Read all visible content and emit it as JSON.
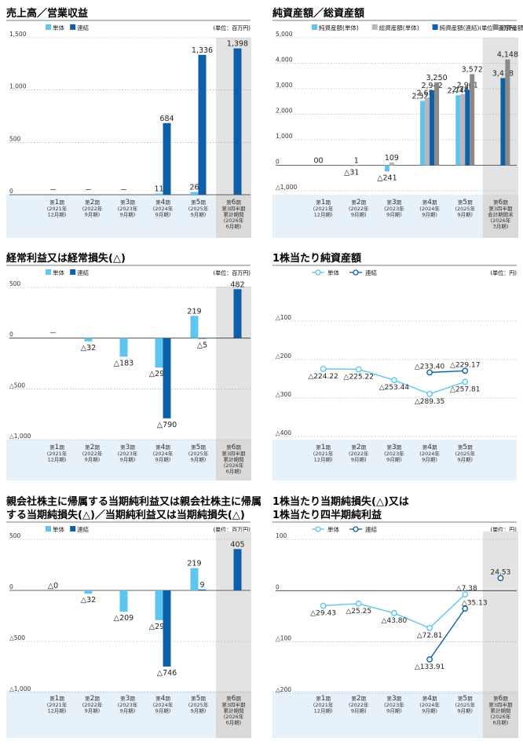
{
  "charts": [
    {
      "id": "c1",
      "title": [
        "売上高／営業収益"
      ],
      "unit": "(単位：百万円)",
      "legend": [
        {
          "label": "単体",
          "color": "#5ec6ee",
          "type": "bar"
        },
        {
          "label": "連結",
          "color": "#0d5fa8",
          "type": "bar"
        }
      ],
      "ylim": [
        0,
        1500
      ],
      "yticks": [
        {
          "v": 0,
          "t": "0"
        },
        {
          "v": 500,
          "t": "500"
        },
        {
          "v": 1000,
          "t": "1,000"
        },
        {
          "v": 1500,
          "t": "1,500"
        }
      ],
      "categories": [
        {
          "n": "1",
          "l": [
            "(2021年",
            "12月期)"
          ]
        },
        {
          "n": "2",
          "l": [
            "(2022年",
            "9月期)"
          ]
        },
        {
          "n": "3",
          "l": [
            "(2023年",
            "9月期)"
          ]
        },
        {
          "n": "4",
          "l": [
            "(2024年",
            "9月期)"
          ]
        },
        {
          "n": "5",
          "l": [
            "(2025年",
            "9月期)"
          ]
        },
        {
          "n": "6",
          "l": [
            "第3四半期",
            "累計期間",
            "(2026年",
            "6月期)"
          ]
        }
      ],
      "series": [
        {
          "name": "単体",
          "color": "#5ec6ee",
          "values": [
            null,
            null,
            null,
            11,
            26,
            null
          ],
          "labels": [
            "－",
            "－",
            "－",
            "11",
            "26",
            ""
          ]
        },
        {
          "name": "連結",
          "color": "#0d5fa8",
          "values": [
            null,
            null,
            null,
            684,
            1336,
            1398
          ],
          "labels": [
            "",
            "",
            "",
            "684",
            "1,336",
            "1,398"
          ]
        }
      ]
    },
    {
      "id": "c2",
      "title": [
        "純資産額／総資産額"
      ],
      "unit": "(単位：百万円)",
      "legend": [
        {
          "label": "純資産額(単体)",
          "color": "#5ec6ee",
          "type": "bar"
        },
        {
          "label": "総資産額(単体)",
          "color": "#b7b7b7",
          "type": "bar"
        },
        {
          "label": "純資産額(連結)",
          "color": "#0d5fa8",
          "type": "bar"
        },
        {
          "label": "総資産額(連結)",
          "color": "#8a8a8a",
          "type": "bar"
        }
      ],
      "ylim": [
        -1000,
        5000
      ],
      "yticks": [
        {
          "v": -1000,
          "t": "△1,000"
        },
        {
          "v": 0,
          "t": "0"
        },
        {
          "v": 1000,
          "t": "1,000"
        },
        {
          "v": 2000,
          "t": "2,000"
        },
        {
          "v": 3000,
          "t": "3,000"
        },
        {
          "v": 4000,
          "t": "4,000"
        },
        {
          "v": 5000,
          "t": "5,000"
        }
      ],
      "categories": [
        {
          "n": "1",
          "l": [
            "(2021年",
            "12月期)"
          ]
        },
        {
          "n": "2",
          "l": [
            "(2022年",
            "9月期)"
          ]
        },
        {
          "n": "3",
          "l": [
            "(2023年",
            "9月期)"
          ]
        },
        {
          "n": "4",
          "l": [
            "(2024年",
            "9月期)"
          ]
        },
        {
          "n": "5",
          "l": [
            "(2025年",
            "9月期)"
          ]
        },
        {
          "n": "6",
          "l": [
            "第3四半期",
            "会計期間末",
            "(2026年",
            "3月期)"
          ]
        }
      ],
      "series": [
        {
          "name": "純資産額(単体)",
          "color": "#5ec6ee",
          "values": [
            0,
            -31,
            -241,
            2522,
            2744,
            null
          ],
          "labels": [
            "0",
            "△31",
            "△241",
            "2,522",
            "2,744",
            ""
          ]
        },
        {
          "name": "総資産額(単体)",
          "color": "#b7b7b7",
          "values": [
            0,
            1,
            109,
            2651,
            2785,
            null
          ],
          "labels": [
            "0",
            "1",
            "109",
            "2,651",
            "2,785",
            ""
          ]
        },
        {
          "name": "純資産額(連結)",
          "color": "#0d5fa8",
          "values": [
            null,
            null,
            null,
            2942,
            2961,
            3418
          ],
          "labels": [
            "",
            "",
            "",
            "2,942",
            "2,961",
            "3,418"
          ]
        },
        {
          "name": "総資産額(連結)",
          "color": "#8a8a8a",
          "values": [
            null,
            null,
            null,
            3250,
            3572,
            4148
          ],
          "labels": [
            "",
            "",
            "",
            "3,250",
            "3,572",
            "4,148"
          ]
        }
      ]
    },
    {
      "id": "c3",
      "title": [
        "経常利益又は経常損失(△)"
      ],
      "unit": "(単位：百万円)",
      "legend": [
        {
          "label": "単体",
          "color": "#5ec6ee",
          "type": "bar"
        },
        {
          "label": "連結",
          "color": "#0d5fa8",
          "type": "bar"
        }
      ],
      "ylim": [
        -1000,
        500
      ],
      "yticks": [
        {
          "v": -1000,
          "t": "△1,000"
        },
        {
          "v": -500,
          "t": "△500"
        },
        {
          "v": 0,
          "t": "0"
        },
        {
          "v": 500,
          "t": "500"
        }
      ],
      "categories": [
        {
          "n": "1",
          "l": [
            "(2021年",
            "12月期)"
          ]
        },
        {
          "n": "2",
          "l": [
            "(2022年",
            "9月期)"
          ]
        },
        {
          "n": "3",
          "l": [
            "(2023年",
            "9月期)"
          ]
        },
        {
          "n": "4",
          "l": [
            "(2024年",
            "9月期)"
          ]
        },
        {
          "n": "5",
          "l": [
            "(2025年",
            "9月期)"
          ]
        },
        {
          "n": "6",
          "l": [
            "第3四半期",
            "累計期間",
            "(2026年",
            "6月期)"
          ]
        }
      ],
      "series": [
        {
          "name": "単体",
          "color": "#5ec6ee",
          "values": [
            null,
            -32,
            -183,
            -290,
            219,
            null
          ],
          "labels": [
            "－",
            "△32",
            "△183",
            "△290",
            "219",
            ""
          ]
        },
        {
          "name": "連結",
          "color": "#0d5fa8",
          "values": [
            null,
            null,
            null,
            -790,
            -5,
            482
          ],
          "labels": [
            "",
            "",
            "",
            "△790",
            "△5",
            "482"
          ]
        }
      ]
    },
    {
      "id": "c4",
      "title": [
        "1株当たり純資産額"
      ],
      "unit": "(単位：円)",
      "legend": [
        {
          "label": "単体",
          "color": "#5ec6ee",
          "type": "line"
        },
        {
          "label": "連結",
          "color": "#0d5fa8",
          "type": "line"
        }
      ],
      "ylim": [
        -400,
        0
      ],
      "yticks": [
        {
          "v": -400,
          "t": "△400"
        },
        {
          "v": -300,
          "t": "△300"
        },
        {
          "v": -200,
          "t": "△200"
        },
        {
          "v": -100,
          "t": "△100"
        }
      ],
      "categories": [
        {
          "n": "1",
          "l": [
            "(2021年",
            "12月期)"
          ]
        },
        {
          "n": "2",
          "l": [
            "(2022年",
            "9月期)"
          ]
        },
        {
          "n": "3",
          "l": [
            "(2023年",
            "9月期)"
          ]
        },
        {
          "n": "4",
          "l": [
            "(2024年",
            "9月期)"
          ]
        },
        {
          "n": "5",
          "l": [
            "(2025年",
            "9月期)"
          ]
        }
      ],
      "series": [
        {
          "name": "単体",
          "color": "#5ec6ee",
          "values": [
            -224.22,
            -225.22,
            -253.44,
            -289.35,
            -257.81
          ],
          "labels": [
            "△224.22",
            "△225.22",
            "△253.44",
            "△289.35",
            "△257.81"
          ]
        },
        {
          "name": "連結",
          "color": "#0d5fa8",
          "values": [
            null,
            null,
            null,
            -233.4,
            -229.17
          ],
          "labels": [
            "",
            "",
            "",
            "△233.40",
            "△229.17"
          ]
        }
      ]
    },
    {
      "id": "c5",
      "title": [
        "親会社株主に帰属する当期純利益又は親会社株主に帰属",
        "する当期純損失(△)／当期純利益又は当期純損失(△)"
      ],
      "unit": "(単位：百万円)",
      "legend": [
        {
          "label": "単体",
          "color": "#5ec6ee",
          "type": "bar"
        },
        {
          "label": "連結",
          "color": "#0d5fa8",
          "type": "bar"
        }
      ],
      "ylim": [
        -1000,
        500
      ],
      "yticks": [
        {
          "v": -1000,
          "t": "△1,000"
        },
        {
          "v": -500,
          "t": "△500"
        },
        {
          "v": 0,
          "t": "0"
        },
        {
          "v": 500,
          "t": "500"
        }
      ],
      "categories": [
        {
          "n": "1",
          "l": [
            "(2021年",
            "12月期)"
          ]
        },
        {
          "n": "2",
          "l": [
            "(2022年",
            "9月期)"
          ]
        },
        {
          "n": "3",
          "l": [
            "(2023年",
            "9月期)"
          ]
        },
        {
          "n": "4",
          "l": [
            "(2024年",
            "9月期)"
          ]
        },
        {
          "n": "5",
          "l": [
            "(2025年",
            "9月期)"
          ]
        },
        {
          "n": "6",
          "l": [
            "第3四半期",
            "累計期間",
            "(2026年",
            "6月期)"
          ]
        }
      ],
      "series": [
        {
          "name": "単体",
          "color": "#5ec6ee",
          "values": [
            0,
            -32,
            -209,
            -291,
            219,
            null
          ],
          "labels": [
            "△0",
            "△32",
            "△209",
            "△291",
            "219",
            ""
          ]
        },
        {
          "name": "連結",
          "color": "#0d5fa8",
          "values": [
            null,
            null,
            null,
            -746,
            9,
            405
          ],
          "labels": [
            "",
            "",
            "",
            "△746",
            "9",
            "405"
          ]
        }
      ]
    },
    {
      "id": "c6",
      "title": [
        "1株当たり当期純損失(△)又は",
        "1株当たり四半期純利益"
      ],
      "unit": "(単位：円)",
      "legend": [
        {
          "label": "単体",
          "color": "#5ec6ee",
          "type": "line"
        },
        {
          "label": "連結",
          "color": "#0d5fa8",
          "type": "line"
        }
      ],
      "ylim": [
        -200,
        100
      ],
      "yticks": [
        {
          "v": -200,
          "t": "△200"
        },
        {
          "v": -100,
          "t": "△100"
        },
        {
          "v": 0,
          "t": "0"
        },
        {
          "v": 100,
          "t": "100"
        }
      ],
      "categories": [
        {
          "n": "1",
          "l": [
            "(2021年",
            "12月期)"
          ]
        },
        {
          "n": "2",
          "l": [
            "(2022年",
            "9月期)"
          ]
        },
        {
          "n": "3",
          "l": [
            "(2023年",
            "9月期)"
          ]
        },
        {
          "n": "4",
          "l": [
            "(2024年",
            "9月期)"
          ]
        },
        {
          "n": "5",
          "l": [
            "(2025年",
            "9月期)"
          ]
        },
        {
          "n": "6",
          "l": [
            "第3四半期",
            "累計期間",
            "(2026年",
            "6月期)"
          ]
        }
      ],
      "series": [
        {
          "name": "単体",
          "color": "#5ec6ee",
          "values": [
            -29.43,
            -25.25,
            -43.8,
            -72.81,
            -7.38,
            null
          ],
          "labels": [
            "△29.43",
            "△25.25",
            "△43.80",
            "△72.81",
            "△7.38",
            ""
          ]
        },
        {
          "name": "連結",
          "color": "#0d5fa8",
          "values": [
            null,
            null,
            null,
            -133.91,
            -35.13,
            24.53
          ],
          "labels": [
            "",
            "",
            "",
            "△133.91",
            "△35.13",
            "24.53"
          ]
        }
      ]
    }
  ],
  "chart_data": [
    {
      "type": "bar",
      "title": "売上高／営業収益",
      "categories": [
        "第1期",
        "第2期",
        "第3期",
        "第4期",
        "第5期",
        "第6期"
      ],
      "series": [
        {
          "name": "単体",
          "values": [
            null,
            null,
            null,
            11,
            26,
            null
          ]
        },
        {
          "name": "連結",
          "values": [
            null,
            null,
            null,
            684,
            1336,
            1398
          ]
        }
      ],
      "ylim": [
        0,
        1500
      ]
    },
    {
      "type": "bar",
      "title": "純資産額／総資産額",
      "categories": [
        "第1期",
        "第2期",
        "第3期",
        "第4期",
        "第5期",
        "第6期"
      ],
      "series": [
        {
          "name": "純資産額(単体)",
          "values": [
            0,
            -31,
            -241,
            2522,
            2744,
            null
          ]
        },
        {
          "name": "総資産額(単体)",
          "values": [
            0,
            1,
            109,
            2651,
            2785,
            null
          ]
        },
        {
          "name": "純資産額(連結)",
          "values": [
            null,
            null,
            null,
            2942,
            2961,
            3418
          ]
        },
        {
          "name": "総資産額(連結)",
          "values": [
            null,
            null,
            null,
            3250,
            3572,
            4148
          ]
        }
      ],
      "ylim": [
        -1000,
        5000
      ]
    },
    {
      "type": "bar",
      "title": "経常利益又は経常損失(△)",
      "categories": [
        "第1期",
        "第2期",
        "第3期",
        "第4期",
        "第5期",
        "第6期"
      ],
      "series": [
        {
          "name": "単体",
          "values": [
            null,
            -32,
            -183,
            -290,
            219,
            null
          ]
        },
        {
          "name": "連結",
          "values": [
            null,
            null,
            null,
            -790,
            -5,
            482
          ]
        }
      ],
      "ylim": [
        -1000,
        500
      ]
    },
    {
      "type": "line",
      "title": "1株当たり純資産額",
      "categories": [
        "第1期",
        "第2期",
        "第3期",
        "第4期",
        "第5期"
      ],
      "series": [
        {
          "name": "単体",
          "values": [
            -224.22,
            -225.22,
            -253.44,
            -289.35,
            -257.81
          ]
        },
        {
          "name": "連結",
          "values": [
            null,
            null,
            null,
            -233.4,
            -229.17
          ]
        }
      ],
      "ylim": [
        -400,
        0
      ]
    },
    {
      "type": "bar",
      "title": "親会社株主に帰属する当期純利益又は親会社株主に帰属する当期純損失(△)／当期純利益又は当期純損失(△)",
      "categories": [
        "第1期",
        "第2期",
        "第3期",
        "第4期",
        "第5期",
        "第6期"
      ],
      "series": [
        {
          "name": "単体",
          "values": [
            0,
            -32,
            -209,
            -291,
            219,
            null
          ]
        },
        {
          "name": "連結",
          "values": [
            null,
            null,
            null,
            -746,
            9,
            405
          ]
        }
      ],
      "ylim": [
        -1000,
        500
      ]
    },
    {
      "type": "line",
      "title": "1株当たり当期純損失(△)又は1株当たり四半期純利益",
      "categories": [
        "第1期",
        "第2期",
        "第3期",
        "第4期",
        "第5期",
        "第6期"
      ],
      "series": [
        {
          "name": "単体",
          "values": [
            -29.43,
            -25.25,
            -43.8,
            -72.81,
            -7.38,
            null
          ]
        },
        {
          "name": "連結",
          "values": [
            null,
            null,
            null,
            -133.91,
            -35.13,
            24.53
          ]
        }
      ],
      "ylim": [
        -200,
        100
      ]
    }
  ]
}
